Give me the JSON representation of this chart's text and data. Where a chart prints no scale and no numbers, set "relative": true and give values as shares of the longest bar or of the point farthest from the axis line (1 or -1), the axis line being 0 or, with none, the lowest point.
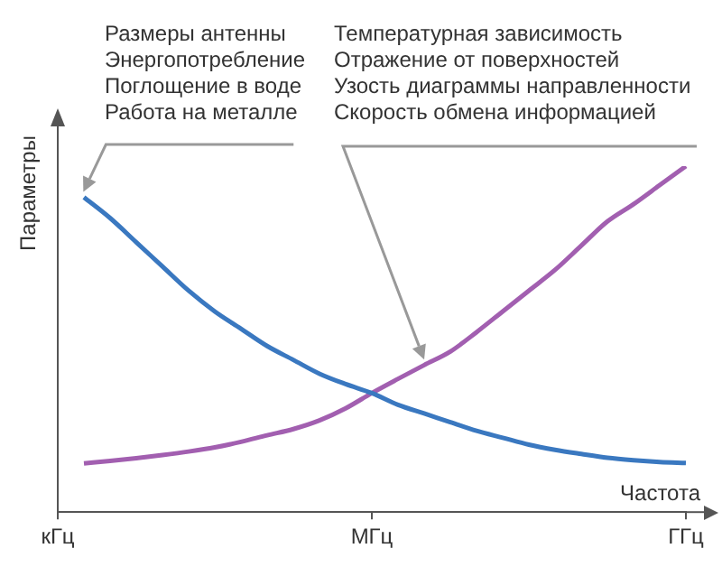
{
  "chart_data": {
    "type": "line",
    "relative": true,
    "xlabel": "Частота",
    "ylabel": "Параметры",
    "categories": [
      "кГц",
      null,
      null,
      null,
      null,
      null,
      null,
      null,
      null,
      null,
      null,
      null,
      "МГц",
      null,
      null,
      null,
      null,
      null,
      null,
      null,
      null,
      null,
      null,
      null,
      "ГГц"
    ],
    "grid": false,
    "legend": false,
    "marker": "none",
    "line_style": "solid",
    "series": [
      {
        "color": "#3a78c0",
        "values": [
          null,
          0.91,
          0.85,
          0.78,
          0.71,
          0.64,
          0.58,
          0.53,
          0.48,
          0.44,
          0.4,
          0.37,
          0.344,
          0.31,
          0.285,
          0.26,
          0.235,
          0.215,
          0.195,
          0.18,
          0.168,
          0.157,
          0.15,
          0.145,
          0.142
        ]
      },
      {
        "color": "#a25fb0",
        "values": [
          null,
          0.141,
          0.148,
          0.156,
          0.165,
          0.175,
          0.187,
          0.203,
          0.222,
          0.24,
          0.265,
          0.3,
          0.344,
          0.385,
          0.425,
          0.464,
          0.52,
          0.58,
          0.64,
          0.7,
          0.77,
          0.84,
          0.89,
          0.945,
          1.0
        ]
      }
    ],
    "annotations": [
      "Размеры антенны\nЭнергопотребление\nПоглощение в воде\nРабота на металле",
      "Температурная зависимость\nОтражение от поверхностей\nУзость диаграммы направленности\nСкорость обмена информацией"
    ]
  }
}
